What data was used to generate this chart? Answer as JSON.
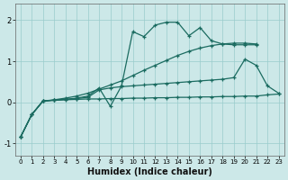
{
  "xlabel": "Humidex (Indice chaleur)",
  "ylabel": "",
  "bg_color": "#cce8e8",
  "grid_color": "#99cccc",
  "line_color": "#1a6b60",
  "xlim": [
    -0.5,
    23.5
  ],
  "ylim": [
    -1.3,
    2.4
  ],
  "x": [
    0,
    1,
    2,
    3,
    4,
    5,
    6,
    7,
    8,
    9,
    10,
    11,
    12,
    13,
    14,
    15,
    16,
    17,
    18,
    19,
    20,
    21,
    22,
    23
  ],
  "curve1": [
    -0.85,
    -0.3,
    0.03,
    0.05,
    0.06,
    0.07,
    0.08,
    0.08,
    0.09,
    0.09,
    0.1,
    0.1,
    0.11,
    0.11,
    0.12,
    0.12,
    0.13,
    0.13,
    0.14,
    0.14,
    0.15,
    0.15,
    0.18,
    0.2
  ],
  "curve2": [
    -0.85,
    -0.3,
    0.03,
    0.05,
    0.07,
    0.09,
    0.12,
    0.3,
    0.35,
    0.38,
    0.4,
    0.42,
    0.44,
    0.46,
    0.48,
    0.5,
    0.52,
    0.54,
    0.56,
    0.6,
    1.05,
    0.9,
    0.4,
    0.22
  ],
  "curve3": [
    -0.85,
    -0.3,
    0.03,
    0.05,
    0.07,
    0.1,
    0.15,
    0.35,
    -0.1,
    0.4,
    1.72,
    1.6,
    1.88,
    1.95,
    1.95,
    1.62,
    1.82,
    1.5,
    1.42,
    1.4,
    1.4,
    1.4,
    null,
    null
  ],
  "curve4": [
    -0.85,
    -0.3,
    0.03,
    0.06,
    0.1,
    0.15,
    0.22,
    0.32,
    0.42,
    0.52,
    0.65,
    0.78,
    0.9,
    1.02,
    1.14,
    1.24,
    1.32,
    1.38,
    1.42,
    1.44,
    1.44,
    1.42,
    null,
    null
  ]
}
